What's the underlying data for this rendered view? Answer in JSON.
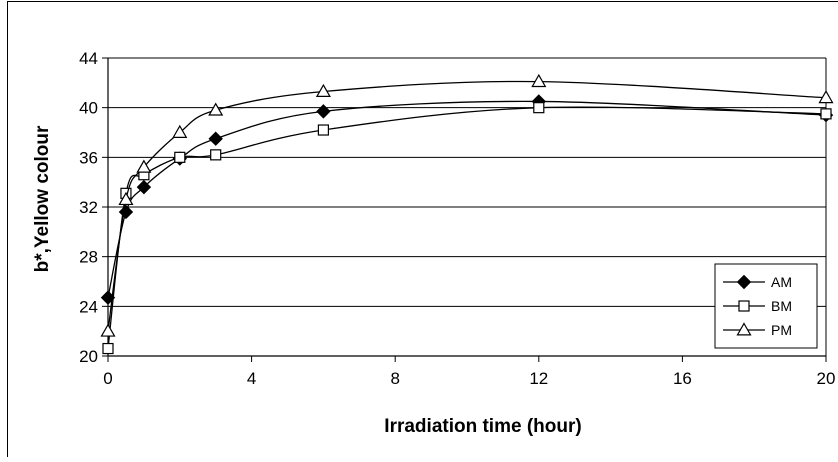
{
  "chart_data": {
    "type": "line",
    "title": "",
    "xlabel": "Irradiation time (hour)",
    "ylabel": "b*,Yellow colour",
    "xlim": [
      0,
      20
    ],
    "ylim": [
      20,
      44
    ],
    "xticks": [
      0,
      4,
      8,
      12,
      16,
      20
    ],
    "yticks": [
      20,
      24,
      28,
      32,
      36,
      40,
      44
    ],
    "grid": "horizontal",
    "legend_position": "bottom-right",
    "series": [
      {
        "name": "AM",
        "marker": "diamond",
        "x": [
          0,
          0.5,
          1,
          2,
          3,
          6,
          12,
          20
        ],
        "y": [
          24.7,
          31.6,
          33.6,
          35.9,
          37.5,
          39.7,
          40.5,
          39.4
        ]
      },
      {
        "name": "BM",
        "marker": "square",
        "x": [
          0,
          0.5,
          1,
          2,
          3,
          6,
          12,
          20
        ],
        "y": [
          20.6,
          33.1,
          34.6,
          36.0,
          36.2,
          38.2,
          40.0,
          39.5
        ]
      },
      {
        "name": "PM",
        "marker": "triangle",
        "x": [
          0,
          0.5,
          1,
          2,
          3,
          6,
          12,
          20
        ],
        "y": [
          22.0,
          32.6,
          35.2,
          38.0,
          39.8,
          41.3,
          42.1,
          40.8
        ]
      }
    ]
  }
}
